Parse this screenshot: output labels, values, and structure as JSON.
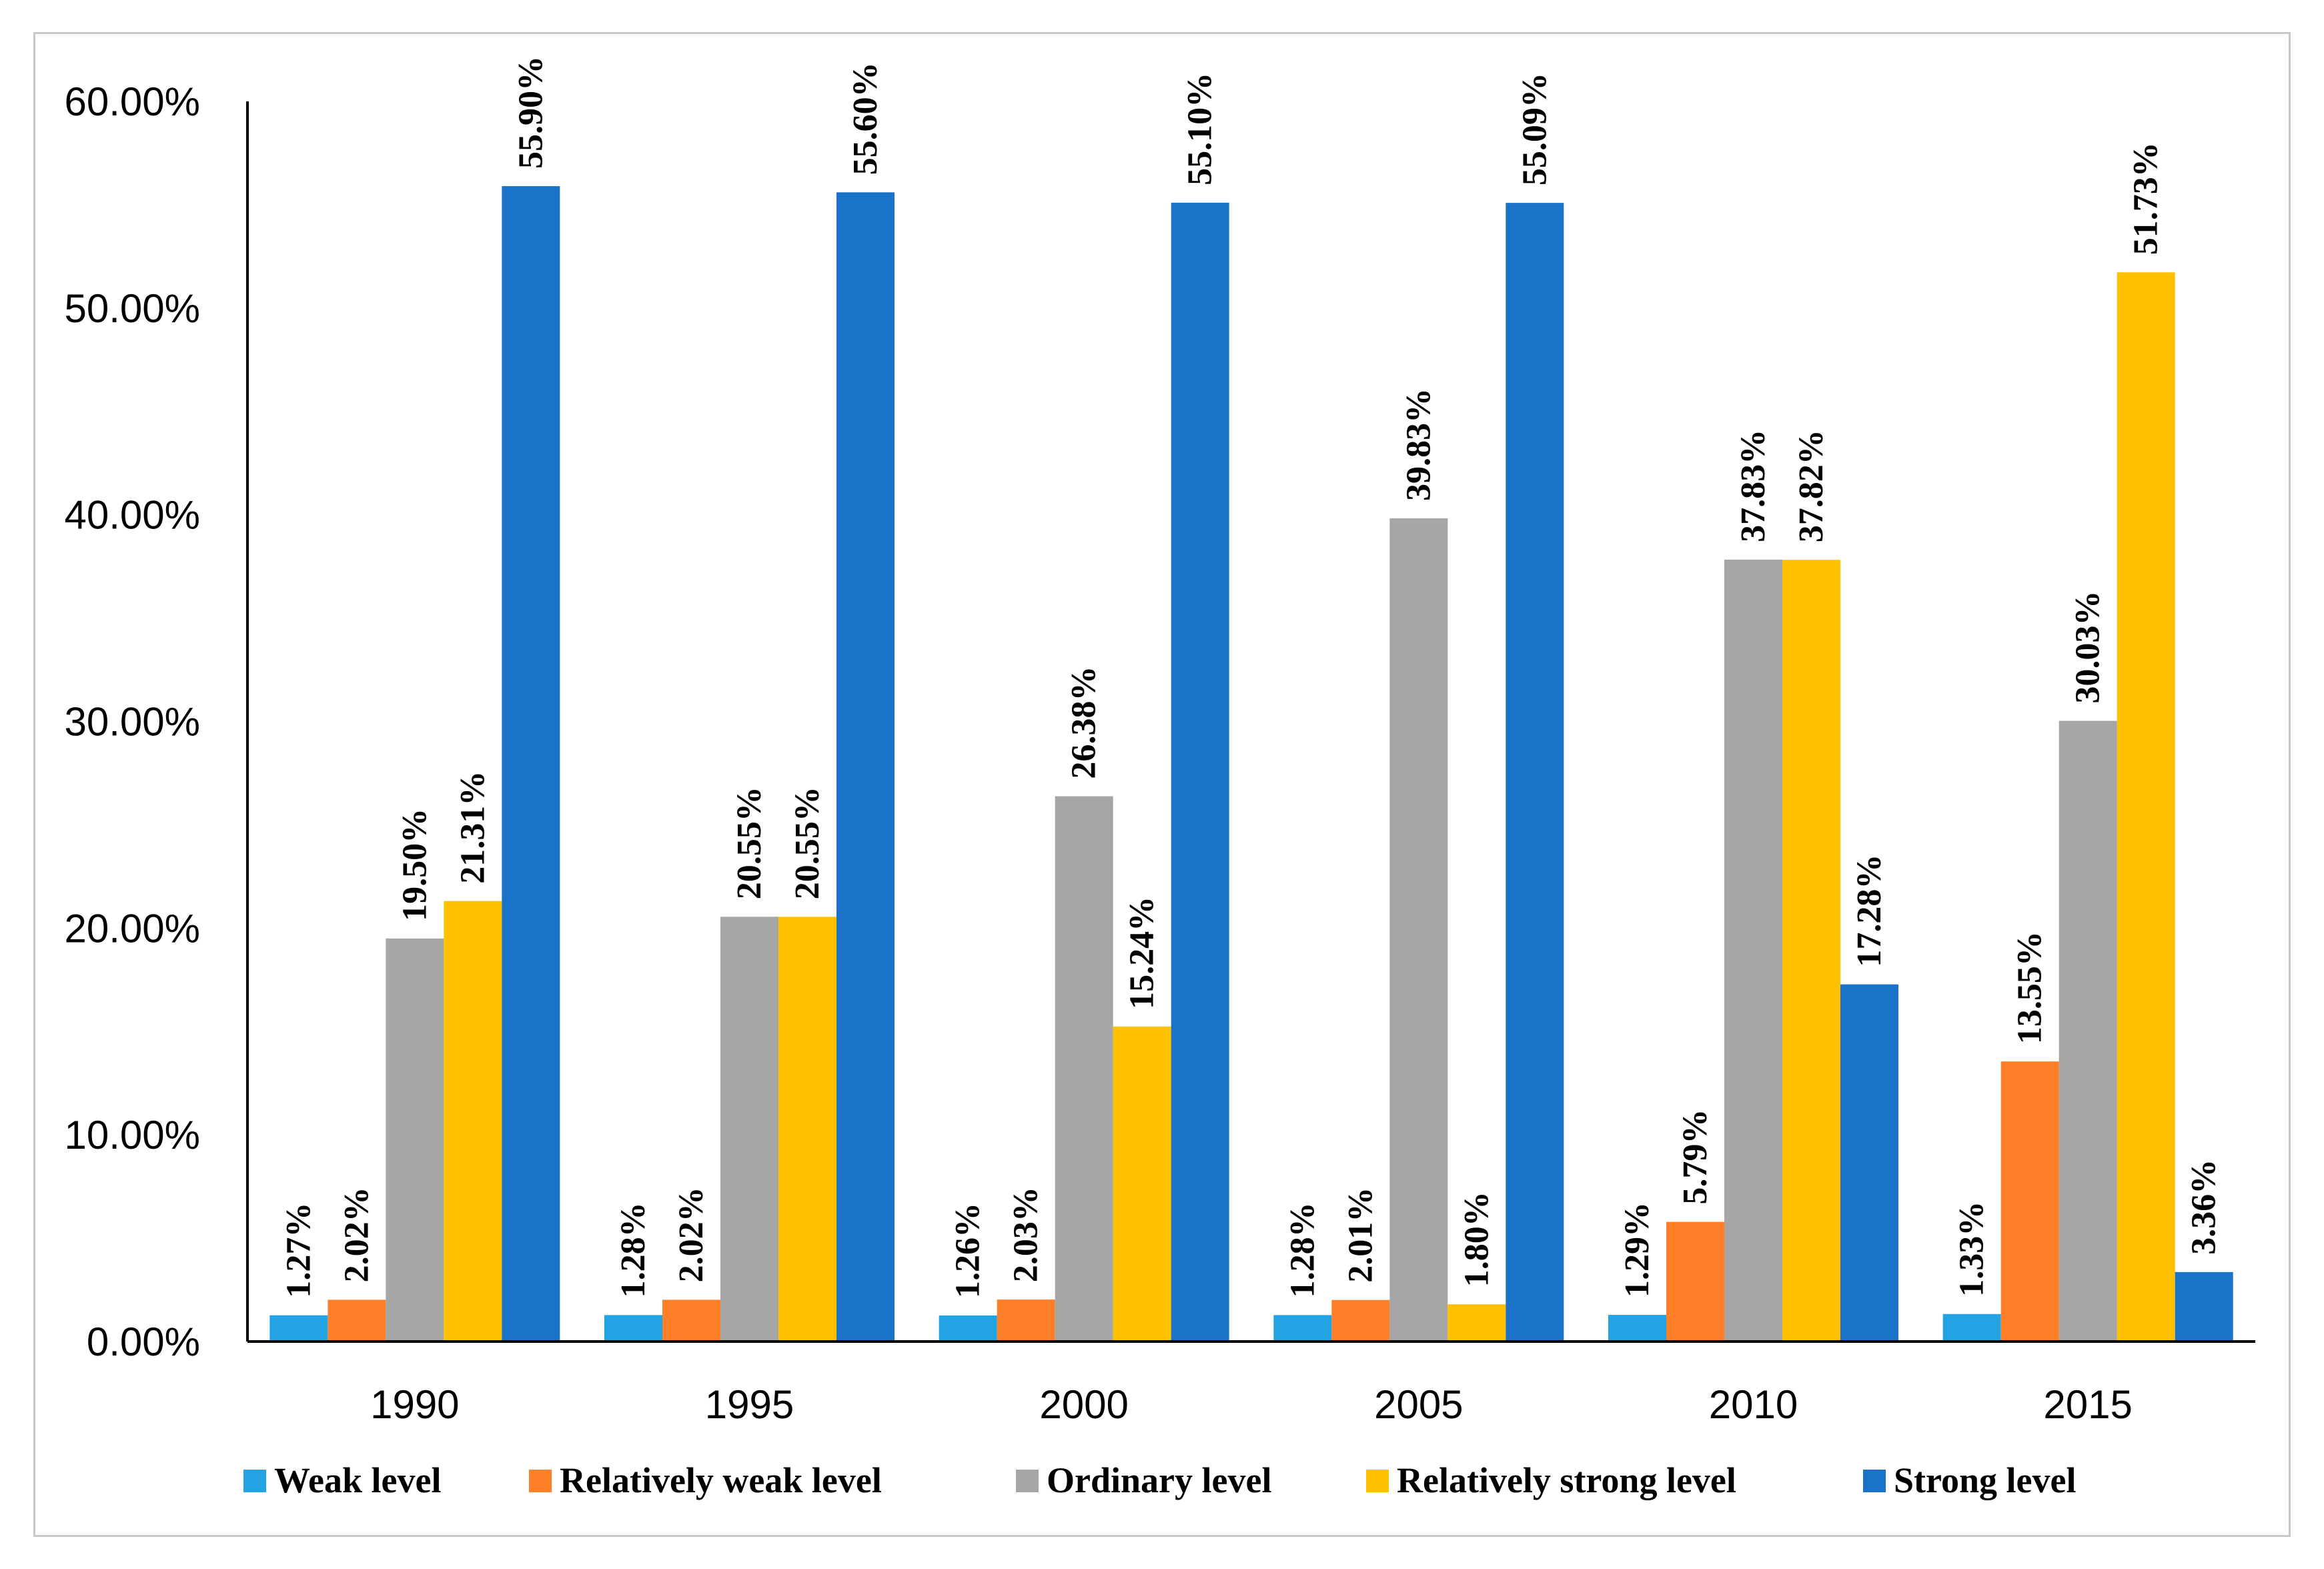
{
  "chart_data": {
    "type": "bar",
    "title": "",
    "xlabel": "",
    "ylabel": "",
    "ylim": [
      0,
      60
    ],
    "y_ticks": [
      "0.00%",
      "10.00%",
      "20.00%",
      "30.00%",
      "40.00%",
      "50.00%",
      "60.00%"
    ],
    "grid": false,
    "legend_position": "bottom",
    "categories": [
      "1990",
      "1995",
      "2000",
      "2005",
      "2010",
      "2015"
    ],
    "series": [
      {
        "name": "Weak level",
        "color": "#23a3e3",
        "values": [
          1.27,
          1.28,
          1.26,
          1.28,
          1.29,
          1.33
        ],
        "labels": [
          "1.27%",
          "1.28%",
          "1.26%",
          "1.28%",
          "1.29%",
          "1.33%"
        ]
      },
      {
        "name": "Relatively weak level",
        "color": "#fd8029",
        "values": [
          2.02,
          2.02,
          2.03,
          2.01,
          5.79,
          13.55
        ],
        "labels": [
          "2.02%",
          "2.02%",
          "2.03%",
          "2.01%",
          "5.79%",
          "13.55%"
        ]
      },
      {
        "name": "Ordinary level",
        "color": "#a6a6a6",
        "values": [
          19.5,
          20.55,
          26.38,
          39.83,
          37.83,
          30.03
        ],
        "labels": [
          "19.50%",
          "20.55%",
          "26.38%",
          "39.83%",
          "37.83%",
          "30.03%"
        ]
      },
      {
        "name": "Relatively strong level",
        "color": "#ffc000",
        "values": [
          21.31,
          20.55,
          15.24,
          1.8,
          37.82,
          51.73
        ],
        "labels": [
          "21.31%",
          "20.55%",
          "15.24%",
          "1.80%",
          "37.82%",
          "51.73%"
        ]
      },
      {
        "name": "Strong level",
        "color": "#1b73c9",
        "values": [
          55.9,
          55.6,
          55.1,
          55.09,
          17.28,
          3.36
        ],
        "labels": [
          "55.90%",
          "55.60%",
          "55.10%",
          "55.09%",
          "17.28%",
          "3.36%"
        ]
      }
    ]
  }
}
